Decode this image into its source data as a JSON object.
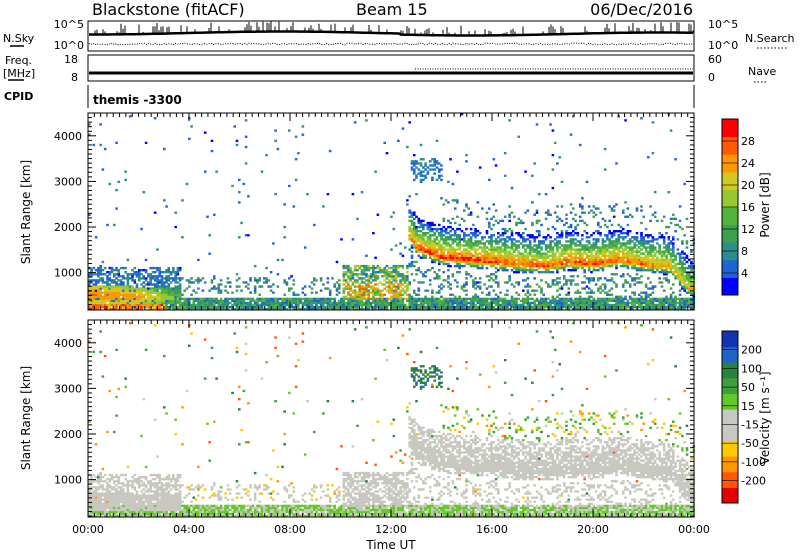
{
  "header": {
    "station": "Blackstone (fitACF)",
    "beam": "Beam 15",
    "date": "06/Dec/2016"
  },
  "summary_panels": {
    "nsky_label": "N.Sky",
    "nsearch_label": "N.Search",
    "noise_ticks": [
      "10^5",
      "10^0"
    ],
    "freq_label": "Freq.",
    "freq_unit": "[MHz]",
    "freq_ticks": [
      "18",
      "8"
    ],
    "nave_label": "Nave",
    "nave_ticks": [
      "60",
      "0"
    ],
    "cpid_label": "CPID",
    "cpid_value": "themis -3300"
  },
  "colors": {
    "power_scale": [
      "#0000ff",
      "#1e64d2",
      "#2d8c8c",
      "#3ca050",
      "#50b43c",
      "#96c832",
      "#d2c81e",
      "#ff9600",
      "#ff5a00",
      "#ff0000"
    ],
    "velocity_scale": [
      "#e60000",
      "#ff5a00",
      "#ff9600",
      "#ffc800",
      "#c8c8c0",
      "#c8c8c0",
      "#64c828",
      "#3ca03c",
      "#28823c",
      "#1e64c8",
      "#1432b4"
    ]
  },
  "chart_data": [
    {
      "type": "heatmap",
      "panel": "power",
      "xlabel": "",
      "ylabel": "Slant Range [km]",
      "ylim": [
        180,
        4500
      ],
      "yticks": [
        "1000",
        "2000",
        "3000",
        "4000"
      ],
      "colorbar_label": "Power [dB]",
      "colorbar_ticks": [
        "4",
        "8",
        "12",
        "16",
        "20",
        "24",
        "28"
      ],
      "colorbar_range": [
        0,
        32
      ],
      "main_band": {
        "hours": [
          12.6,
          13.0,
          14.0,
          15.0,
          16.0,
          17.0,
          18.0,
          19.0,
          20.0,
          21.0,
          22.0,
          23.0,
          23.8
        ],
        "center_range_km": [
          1850,
          1500,
          1300,
          1250,
          1200,
          1150,
          1100,
          1200,
          1150,
          1250,
          1150,
          1100,
          600
        ],
        "peak_power_db": [
          24,
          28,
          30,
          30,
          29,
          28,
          28,
          29,
          29,
          28,
          27,
          24,
          22
        ]
      },
      "near_range_echo": {
        "hours": [
          0,
          2,
          4,
          6,
          8,
          10,
          12
        ],
        "range_km": [
          500,
          450,
          400,
          350,
          400,
          500,
          600
        ],
        "peak_power_db": [
          26,
          24,
          14,
          12,
          12,
          18,
          22
        ]
      }
    },
    {
      "type": "heatmap",
      "panel": "velocity",
      "xlabel": "Time UT",
      "ylabel": "Slant Range [km]",
      "ylim": [
        180,
        4500
      ],
      "yticks": [
        "1000",
        "2000",
        "3000",
        "4000"
      ],
      "xticks": [
        "00:00",
        "04:00",
        "08:00",
        "12:00",
        "16:00",
        "20:00",
        "00:00"
      ],
      "xlim_hours": [
        0,
        24
      ],
      "colorbar_label": "Velocity [m s⁻¹]",
      "colorbar_ticks": [
        "200",
        "100",
        "50",
        "15",
        "-15",
        "-50",
        "-100",
        "-200"
      ],
      "colorbar_range": [
        -250,
        250
      ],
      "dominant_velocity_ms": [
        -15,
        15
      ]
    }
  ]
}
